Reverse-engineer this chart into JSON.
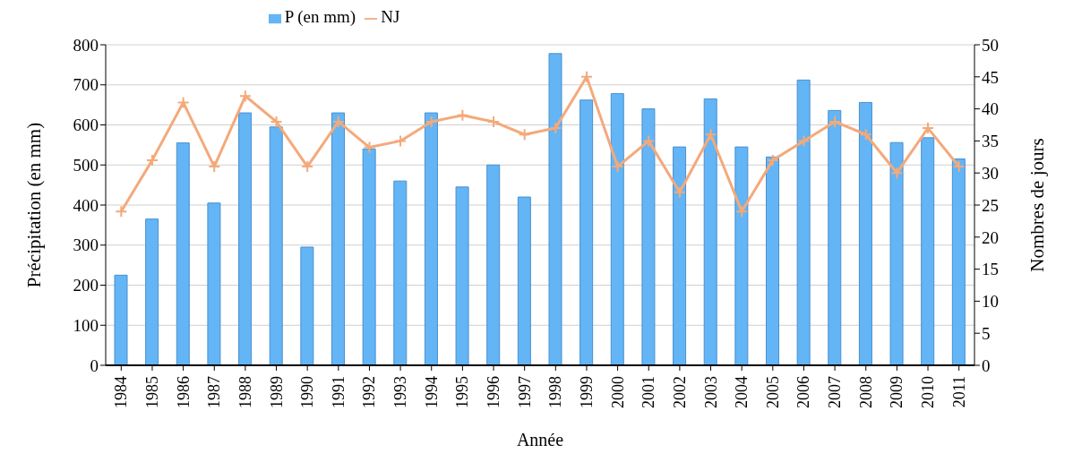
{
  "chart_data": {
    "type": "bar",
    "xlabel": "Année",
    "ylabel": "Précipitation (en mm)",
    "y2label": "Nombres de jours",
    "categories": [
      "1984",
      "1985",
      "1986",
      "1987",
      "1988",
      "1989",
      "1990",
      "1991",
      "1992",
      "1993",
      "1994",
      "1995",
      "1996",
      "1997",
      "1998",
      "1999",
      "2000",
      "2001",
      "2002",
      "2003",
      "2004",
      "2005",
      "2006",
      "2007",
      "2008",
      "2009",
      "2010",
      "2011"
    ],
    "series": [
      {
        "name": "P (en mm)",
        "color": "#63b5f5",
        "values": [
          225,
          365,
          555,
          405,
          630,
          595,
          295,
          630,
          540,
          460,
          630,
          445,
          500,
          420,
          778,
          662,
          678,
          640,
          545,
          665,
          545,
          520,
          712,
          636,
          656,
          556,
          568,
          515
        ]
      },
      {
        "name": "NJ",
        "type": "line",
        "axis": "y2",
        "color": "#f4a97a",
        "marker": "cross",
        "values": [
          24,
          32,
          41,
          31,
          42,
          38,
          31,
          38,
          34,
          35,
          38,
          39,
          38,
          36,
          37,
          45,
          31,
          35,
          27,
          36,
          24,
          32,
          35,
          38,
          36,
          30,
          37,
          31
        ]
      }
    ],
    "ylim": [
      0,
      800
    ],
    "yticks": [
      0,
      100,
      200,
      300,
      400,
      500,
      600,
      700,
      800
    ],
    "y2lim": [
      0,
      50
    ],
    "y2ticks": [
      0,
      5,
      10,
      15,
      20,
      25,
      30,
      35,
      40,
      45,
      50
    ],
    "grid": "y",
    "legend": "top"
  }
}
